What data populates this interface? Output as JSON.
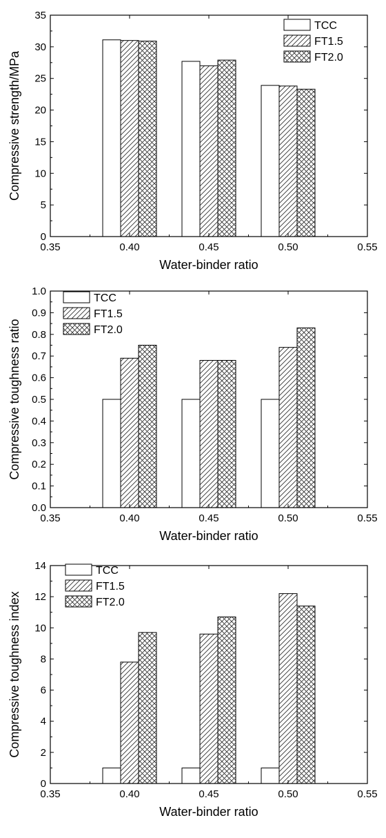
{
  "colors": {
    "axis": "#000000",
    "bar_fill": "#ffffff",
    "hatch": "#333333"
  },
  "chart_data": [
    {
      "type": "bar",
      "xlabel": "Water-binder ratio",
      "ylabel": "Compressive strength/MPa",
      "xlim": [
        0.35,
        0.55
      ],
      "ylim": [
        0,
        35
      ],
      "x_ticks": [
        "0.35",
        "0.40",
        "0.45",
        "0.50",
        "0.55"
      ],
      "y_ticks": [
        "0",
        "5",
        "10",
        "15",
        "20",
        "25",
        "30",
        "35"
      ],
      "legend_position": "top-right",
      "categories": [
        "0.40",
        "0.45",
        "0.50"
      ],
      "series": [
        {
          "name": "TCC",
          "pattern": "solid",
          "values": [
            31.1,
            27.7,
            23.9
          ]
        },
        {
          "name": "FT1.5",
          "pattern": "diagonal",
          "values": [
            31.0,
            27.0,
            23.8
          ]
        },
        {
          "name": "FT2.0",
          "pattern": "crosshatch",
          "values": [
            30.9,
            27.9,
            23.3
          ]
        }
      ]
    },
    {
      "type": "bar",
      "xlabel": "Water-binder ratio",
      "ylabel": "Compressive toughness ratio",
      "xlim": [
        0.35,
        0.55
      ],
      "ylim": [
        0,
        1.0
      ],
      "x_ticks": [
        "0.35",
        "0.40",
        "0.45",
        "0.50",
        "0.55"
      ],
      "y_ticks": [
        "0.0",
        "0.1",
        "0.2",
        "0.3",
        "0.4",
        "0.5",
        "0.6",
        "0.7",
        "0.8",
        "0.9",
        "1.0"
      ],
      "legend_position": "top-left",
      "categories": [
        "0.40",
        "0.45",
        "0.50"
      ],
      "series": [
        {
          "name": "TCC",
          "pattern": "solid",
          "values": [
            0.5,
            0.5,
            0.5
          ]
        },
        {
          "name": "FT1.5",
          "pattern": "diagonal",
          "values": [
            0.69,
            0.68,
            0.74
          ]
        },
        {
          "name": "FT2.0",
          "pattern": "crosshatch",
          "values": [
            0.75,
            0.68,
            0.83
          ]
        }
      ]
    },
    {
      "type": "bar",
      "xlabel": "Water-binder ratio",
      "ylabel": "Compressive toughness index",
      "xlim": [
        0.35,
        0.55
      ],
      "ylim": [
        0,
        14
      ],
      "x_ticks": [
        "0.35",
        "0.40",
        "0.45",
        "0.50",
        "0.55"
      ],
      "y_ticks": [
        "0",
        "2",
        "4",
        "6",
        "8",
        "10",
        "12",
        "14"
      ],
      "legend_position": "top-left",
      "categories": [
        "0.40",
        "0.45",
        "0.50"
      ],
      "series": [
        {
          "name": "TCC",
          "pattern": "solid",
          "values": [
            1.0,
            1.0,
            1.0
          ]
        },
        {
          "name": "FT1.5",
          "pattern": "diagonal",
          "values": [
            7.8,
            9.6,
            12.2
          ]
        },
        {
          "name": "FT2.0",
          "pattern": "crosshatch",
          "values": [
            9.7,
            10.7,
            11.4
          ]
        }
      ]
    }
  ]
}
